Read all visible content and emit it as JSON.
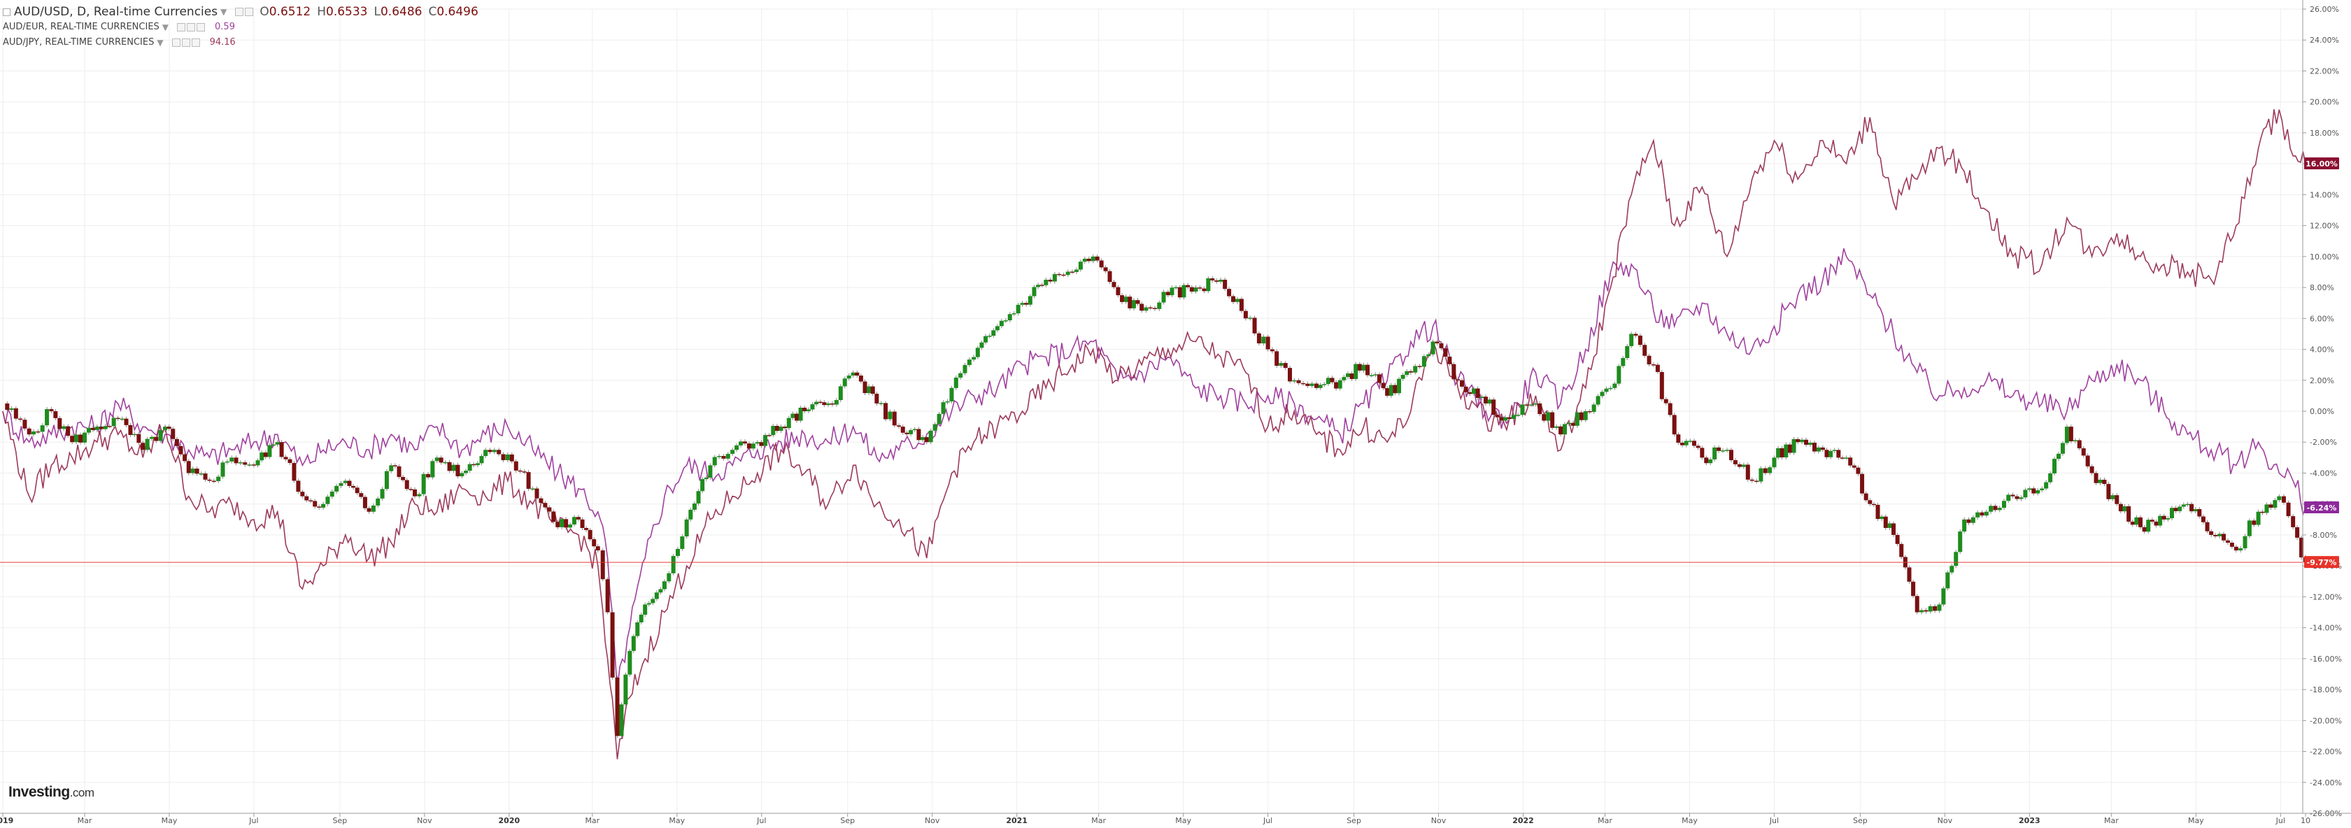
{
  "legend": {
    "main": {
      "title": "AUD/USD, D, Real-time Currencies",
      "o_label": "O",
      "o_value": "0.6512",
      "h_label": "H",
      "h_value": "0.6533",
      "l_label": "L",
      "l_value": "0.6486",
      "c_label": "C",
      "c_value": "0.6496"
    },
    "overlays": [
      {
        "label": "AUD/EUR, REAL-TIME CURRENCIES",
        "value": "0.59",
        "color": "#a0409e"
      },
      {
        "label": "AUD/JPY, REAL-TIME CURRENCIES",
        "value": "94.16",
        "color": "#9c3a5a"
      }
    ]
  },
  "logo": {
    "brand": "Investing",
    "suffix": ".com"
  },
  "colors": {
    "up_candle": "#1e8c1e",
    "down_candle": "#7a1010",
    "aud_eur_line": "#a0409e",
    "aud_jpy_line": "#9c3a5a",
    "last_price_line": "#e63a3a",
    "grid": "#eeeeee",
    "axis_text": "#555555"
  },
  "chart_data": {
    "type": "line",
    "title": "AUD/USD, D, Real-time Currencies",
    "xlabel": "",
    "ylabel": "",
    "y_unit": "%",
    "ylim": [
      -26,
      26
    ],
    "x_range": [
      "2019-01-01",
      "2023-07-19"
    ],
    "grid": true,
    "x_ticks": [
      {
        "date": "2019-01-01",
        "label": "2019"
      },
      {
        "date": "2019-03-01",
        "label": "Mar"
      },
      {
        "date": "2019-05-01",
        "label": "May"
      },
      {
        "date": "2019-07-01",
        "label": "Jul"
      },
      {
        "date": "2019-09-01",
        "label": "Sep"
      },
      {
        "date": "2019-11-01",
        "label": "Nov"
      },
      {
        "date": "2020-01-01",
        "label": "2020"
      },
      {
        "date": "2020-03-01",
        "label": "Mar"
      },
      {
        "date": "2020-05-01",
        "label": "May"
      },
      {
        "date": "2020-07-01",
        "label": "Jul"
      },
      {
        "date": "2020-09-01",
        "label": "Sep"
      },
      {
        "date": "2020-11-01",
        "label": "Nov"
      },
      {
        "date": "2021-01-01",
        "label": "2021"
      },
      {
        "date": "2021-03-01",
        "label": "Mar"
      },
      {
        "date": "2021-05-01",
        "label": "May"
      },
      {
        "date": "2021-07-01",
        "label": "Jul"
      },
      {
        "date": "2021-09-01",
        "label": "Sep"
      },
      {
        "date": "2021-11-01",
        "label": "Nov"
      },
      {
        "date": "2022-01-01",
        "label": "2022"
      },
      {
        "date": "2022-03-01",
        "label": "Mar"
      },
      {
        "date": "2022-05-01",
        "label": "May"
      },
      {
        "date": "2022-07-01",
        "label": "Jul"
      },
      {
        "date": "2022-09-01",
        "label": "Sep"
      },
      {
        "date": "2022-11-01",
        "label": "Nov"
      },
      {
        "date": "2023-01-01",
        "label": "2023"
      },
      {
        "date": "2023-03-01",
        "label": "Mar"
      },
      {
        "date": "2023-05-01",
        "label": "May"
      },
      {
        "date": "2023-07-01",
        "label": "Jul"
      },
      {
        "date": "2023-07-19",
        "label": "10"
      }
    ],
    "y_ticks": [
      {
        "value": 26,
        "label": "26.00%"
      },
      {
        "value": 24,
        "label": "24.00%"
      },
      {
        "value": 22,
        "label": "22.00%"
      },
      {
        "value": 20,
        "label": "20.00%"
      },
      {
        "value": 18,
        "label": "18.00%"
      },
      {
        "value": 16,
        "label": "16.00%"
      },
      {
        "value": 14,
        "label": "14.00%"
      },
      {
        "value": 12,
        "label": "12.00%"
      },
      {
        "value": 10,
        "label": "10.00%"
      },
      {
        "value": 8,
        "label": "8.00%"
      },
      {
        "value": 6,
        "label": "6.00%"
      },
      {
        "value": 4,
        "label": "4.00%"
      },
      {
        "value": 2,
        "label": "2.00%"
      },
      {
        "value": 0,
        "label": "0.00%"
      },
      {
        "value": -2,
        "label": "-2.00%"
      },
      {
        "value": -4,
        "label": "-4.00%"
      },
      {
        "value": -6,
        "label": "-6.00%"
      },
      {
        "value": -8,
        "label": "-8.00%"
      },
      {
        "value": -10,
        "label": "-10.00%"
      },
      {
        "value": -12,
        "label": "-12.00%"
      },
      {
        "value": -14,
        "label": "-14.00%"
      },
      {
        "value": -16,
        "label": "-16.00%"
      },
      {
        "value": -18,
        "label": "-18.00%"
      },
      {
        "value": -20,
        "label": "-20.00%"
      },
      {
        "value": -22,
        "label": "-22.00%"
      },
      {
        "value": -24,
        "label": "-24.00%"
      },
      {
        "value": -26,
        "label": "-26.00%"
      }
    ],
    "last_value_badges": [
      {
        "series": "AUD/JPY, REAL-TIME CURRENCIES",
        "value": 16.0,
        "label": "16.00%",
        "color": "#8b1030"
      },
      {
        "series": "AUD/EUR, REAL-TIME CURRENCIES",
        "value": -6.24,
        "label": "-6.24%",
        "color": "#8e2a9a"
      },
      {
        "series": "AUD/USD",
        "value": -9.77,
        "label": "-9.77%",
        "color": "#e8332a"
      }
    ],
    "series": [
      {
        "name": "AUD/USD",
        "style": "candlestick",
        "x": [
          "2019-01-01",
          "2019-01-20",
          "2019-02-05",
          "2019-02-20",
          "2019-03-10",
          "2019-03-25",
          "2019-04-12",
          "2019-04-28",
          "2019-05-15",
          "2019-05-30",
          "2019-06-15",
          "2019-07-01",
          "2019-07-18",
          "2019-08-05",
          "2019-08-20",
          "2019-09-05",
          "2019-09-22",
          "2019-10-08",
          "2019-10-25",
          "2019-11-10",
          "2019-11-28",
          "2019-12-15",
          "2019-12-31",
          "2020-01-18",
          "2020-02-05",
          "2020-02-20",
          "2020-03-05",
          "2020-03-12",
          "2020-03-19",
          "2020-03-28",
          "2020-04-08",
          "2020-04-22",
          "2020-05-08",
          "2020-05-25",
          "2020-06-10",
          "2020-06-28",
          "2020-07-15",
          "2020-08-01",
          "2020-08-18",
          "2020-09-05",
          "2020-09-22",
          "2020-10-08",
          "2020-10-28",
          "2020-11-15",
          "2020-12-01",
          "2020-12-18",
          "2021-01-05",
          "2021-01-22",
          "2021-02-10",
          "2021-02-25",
          "2021-03-15",
          "2021-04-01",
          "2021-04-20",
          "2021-05-10",
          "2021-05-28",
          "2021-06-15",
          "2021-07-01",
          "2021-07-20",
          "2021-08-05",
          "2021-08-22",
          "2021-09-08",
          "2021-09-25",
          "2021-10-12",
          "2021-10-28",
          "2021-11-15",
          "2021-12-05",
          "2021-12-22",
          "2022-01-10",
          "2022-01-28",
          "2022-02-15",
          "2022-03-05",
          "2022-03-20",
          "2022-04-05",
          "2022-04-20",
          "2022-05-10",
          "2022-05-28",
          "2022-06-15",
          "2022-07-01",
          "2022-07-18",
          "2022-08-05",
          "2022-08-22",
          "2022-09-08",
          "2022-09-25",
          "2022-10-12",
          "2022-10-28",
          "2022-11-15",
          "2022-12-01",
          "2022-12-20",
          "2023-01-10",
          "2023-01-28",
          "2023-02-15",
          "2023-03-05",
          "2023-03-22",
          "2023-04-08",
          "2023-04-25",
          "2023-05-12",
          "2023-05-30",
          "2023-06-15",
          "2023-06-30",
          "2023-07-10",
          "2023-07-19"
        ],
        "values": [
          0.5,
          -1.5,
          0.0,
          -2.0,
          -1.0,
          -0.5,
          -2.5,
          -1.0,
          -4.0,
          -4.5,
          -3.0,
          -3.5,
          -2.0,
          -5.5,
          -6.0,
          -4.5,
          -6.5,
          -3.5,
          -5.5,
          -3.0,
          -4.0,
          -2.5,
          -2.8,
          -5.0,
          -7.5,
          -7.0,
          -9.0,
          -13.0,
          -21.0,
          -15.5,
          -12.5,
          -11.0,
          -7.0,
          -3.5,
          -2.5,
          -2.0,
          -1.0,
          0.0,
          0.5,
          2.5,
          0.5,
          -1.0,
          -2.0,
          1.5,
          3.5,
          5.5,
          7.0,
          8.5,
          9.0,
          10.0,
          7.5,
          6.5,
          7.5,
          8.0,
          8.5,
          6.0,
          4.0,
          2.0,
          1.5,
          2.0,
          3.0,
          1.0,
          2.5,
          4.5,
          2.0,
          0.5,
          -0.5,
          0.5,
          -1.5,
          0.0,
          1.5,
          5.0,
          3.0,
          -1.5,
          -3.0,
          -2.5,
          -4.5,
          -3.0,
          -2.0,
          -2.5,
          -3.0,
          -6.0,
          -8.0,
          -13.0,
          -12.5,
          -7.0,
          -6.5,
          -5.5,
          -5.0,
          -1.0,
          -4.0,
          -6.0,
          -7.5,
          -7.0,
          -6.0,
          -8.0,
          -9.0,
          -6.5,
          -5.5,
          -7.5,
          -9.77
        ]
      },
      {
        "name": "AUD/EUR, REAL-TIME CURRENCIES",
        "style": "line",
        "x": [
          "2019-01-01",
          "2019-01-20",
          "2019-02-05",
          "2019-02-20",
          "2019-03-10",
          "2019-03-25",
          "2019-04-12",
          "2019-04-28",
          "2019-05-15",
          "2019-05-30",
          "2019-06-15",
          "2019-07-01",
          "2019-07-18",
          "2019-08-05",
          "2019-08-20",
          "2019-09-05",
          "2019-09-22",
          "2019-10-08",
          "2019-10-25",
          "2019-11-10",
          "2019-11-28",
          "2019-12-15",
          "2019-12-31",
          "2020-01-18",
          "2020-02-05",
          "2020-02-20",
          "2020-03-05",
          "2020-03-12",
          "2020-03-19",
          "2020-03-28",
          "2020-04-08",
          "2020-04-22",
          "2020-05-08",
          "2020-05-25",
          "2020-06-10",
          "2020-06-28",
          "2020-07-15",
          "2020-08-01",
          "2020-08-18",
          "2020-09-05",
          "2020-09-22",
          "2020-10-08",
          "2020-10-28",
          "2020-11-15",
          "2020-12-01",
          "2020-12-18",
          "2021-01-05",
          "2021-01-22",
          "2021-02-10",
          "2021-02-25",
          "2021-03-15",
          "2021-04-01",
          "2021-04-20",
          "2021-05-10",
          "2021-05-28",
          "2021-06-15",
          "2021-07-01",
          "2021-07-20",
          "2021-08-05",
          "2021-08-22",
          "2021-09-08",
          "2021-09-25",
          "2021-10-12",
          "2021-10-28",
          "2021-11-15",
          "2021-12-05",
          "2021-12-22",
          "2022-01-10",
          "2022-01-28",
          "2022-02-15",
          "2022-03-05",
          "2022-03-20",
          "2022-04-05",
          "2022-04-20",
          "2022-05-10",
          "2022-05-28",
          "2022-06-15",
          "2022-07-01",
          "2022-07-18",
          "2022-08-05",
          "2022-08-22",
          "2022-09-08",
          "2022-09-25",
          "2022-10-12",
          "2022-10-28",
          "2022-11-15",
          "2022-12-01",
          "2022-12-20",
          "2023-01-10",
          "2023-01-28",
          "2023-02-15",
          "2023-03-05",
          "2023-03-22",
          "2023-04-08",
          "2023-04-25",
          "2023-05-12",
          "2023-05-30",
          "2023-06-15",
          "2023-06-30",
          "2023-07-10",
          "2023-07-19"
        ],
        "values": [
          0.0,
          -2.0,
          -1.5,
          -1.0,
          -1.0,
          0.5,
          -1.0,
          -1.5,
          -2.5,
          -3.0,
          -2.5,
          -2.0,
          -1.5,
          -3.5,
          -2.5,
          -2.0,
          -2.5,
          -1.5,
          -2.5,
          -1.0,
          -2.5,
          -1.5,
          -1.0,
          -2.5,
          -4.0,
          -5.0,
          -6.5,
          -9.5,
          -18.0,
          -14.0,
          -9.5,
          -5.5,
          -3.5,
          -4.0,
          -3.5,
          -2.5,
          -2.0,
          -1.5,
          -2.0,
          -1.0,
          -3.0,
          -2.5,
          -1.5,
          0.0,
          1.0,
          1.5,
          3.0,
          3.5,
          4.0,
          4.5,
          2.0,
          2.5,
          3.5,
          1.5,
          1.0,
          0.5,
          1.0,
          0.5,
          -0.5,
          -1.5,
          0.5,
          2.0,
          4.5,
          5.5,
          2.0,
          0.0,
          -0.5,
          2.5,
          0.5,
          4.0,
          9.0,
          9.5,
          6.5,
          5.5,
          7.0,
          5.0,
          4.0,
          5.5,
          7.5,
          8.5,
          10.0,
          7.5,
          5.0,
          2.5,
          1.0,
          1.5,
          2.0,
          1.0,
          0.5,
          0.0,
          2.0,
          3.0,
          2.0,
          0.0,
          -1.5,
          -2.5,
          -3.5,
          -2.0,
          -4.0,
          -4.5,
          -6.24
        ]
      },
      {
        "name": "AUD/JPY, REAL-TIME CURRENCIES",
        "style": "line",
        "x": [
          "2019-01-01",
          "2019-01-20",
          "2019-02-05",
          "2019-02-20",
          "2019-03-10",
          "2019-03-25",
          "2019-04-12",
          "2019-04-28",
          "2019-05-15",
          "2019-05-30",
          "2019-06-15",
          "2019-07-01",
          "2019-07-18",
          "2019-08-05",
          "2019-08-20",
          "2019-09-05",
          "2019-09-22",
          "2019-10-08",
          "2019-10-25",
          "2019-11-10",
          "2019-11-28",
          "2019-12-15",
          "2019-12-31",
          "2020-01-18",
          "2020-02-05",
          "2020-02-20",
          "2020-03-05",
          "2020-03-12",
          "2020-03-19",
          "2020-03-28",
          "2020-04-08",
          "2020-04-22",
          "2020-05-08",
          "2020-05-25",
          "2020-06-10",
          "2020-06-28",
          "2020-07-15",
          "2020-08-01",
          "2020-08-18",
          "2020-09-05",
          "2020-09-22",
          "2020-10-08",
          "2020-10-28",
          "2020-11-15",
          "2020-12-01",
          "2020-12-18",
          "2021-01-05",
          "2021-01-22",
          "2021-02-10",
          "2021-02-25",
          "2021-03-15",
          "2021-04-01",
          "2021-04-20",
          "2021-05-10",
          "2021-05-28",
          "2021-06-15",
          "2021-07-01",
          "2021-07-20",
          "2021-08-05",
          "2021-08-22",
          "2021-09-08",
          "2021-09-25",
          "2021-10-12",
          "2021-10-28",
          "2021-11-15",
          "2021-12-05",
          "2021-12-22",
          "2022-01-10",
          "2022-01-28",
          "2022-02-15",
          "2022-03-05",
          "2022-03-20",
          "2022-04-05",
          "2022-04-20",
          "2022-05-10",
          "2022-05-28",
          "2022-06-15",
          "2022-07-01",
          "2022-07-18",
          "2022-08-05",
          "2022-08-22",
          "2022-09-08",
          "2022-09-25",
          "2022-10-12",
          "2022-10-28",
          "2022-11-15",
          "2022-12-01",
          "2022-12-20",
          "2023-01-10",
          "2023-01-28",
          "2023-02-15",
          "2023-03-05",
          "2023-03-22",
          "2023-04-08",
          "2023-04-25",
          "2023-05-12",
          "2023-05-30",
          "2023-06-15",
          "2023-06-30",
          "2023-07-10",
          "2023-07-19"
        ],
        "values": [
          0.0,
          -5.5,
          -3.5,
          -3.0,
          -2.0,
          -1.5,
          -3.0,
          -1.0,
          -5.5,
          -6.5,
          -6.0,
          -7.0,
          -6.5,
          -11.5,
          -10.0,
          -8.0,
          -9.5,
          -8.5,
          -6.0,
          -6.5,
          -5.0,
          -5.5,
          -4.5,
          -6.0,
          -7.5,
          -8.0,
          -10.0,
          -16.0,
          -22.5,
          -18.5,
          -16.0,
          -13.0,
          -10.0,
          -7.0,
          -5.5,
          -4.0,
          -2.5,
          -4.0,
          -6.0,
          -3.5,
          -6.0,
          -7.0,
          -9.5,
          -4.0,
          -2.0,
          -1.0,
          0.0,
          1.5,
          3.0,
          4.0,
          2.0,
          3.0,
          4.0,
          4.5,
          3.5,
          2.5,
          -1.0,
          0.0,
          -1.5,
          -2.5,
          -1.0,
          -2.0,
          0.0,
          4.5,
          1.5,
          -0.5,
          -0.5,
          1.0,
          -2.5,
          1.5,
          8.0,
          14.0,
          17.5,
          12.0,
          14.5,
          10.0,
          15.0,
          17.5,
          15.0,
          17.5,
          16.0,
          19.0,
          13.5,
          15.0,
          17.0,
          15.5,
          13.0,
          10.0,
          9.5,
          12.5,
          10.0,
          11.5,
          10.0,
          9.5,
          9.0,
          8.5,
          12.0,
          17.0,
          19.5,
          16.5,
          16.0
        ]
      }
    ]
  }
}
